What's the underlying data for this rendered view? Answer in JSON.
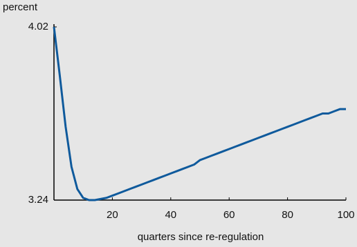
{
  "chart_data": {
    "type": "line",
    "y_label": "percent",
    "x_label": "quarters since re-regulation",
    "x": [
      0,
      2,
      4,
      6,
      8,
      10,
      12,
      14,
      16,
      18,
      20,
      22,
      24,
      26,
      28,
      30,
      32,
      34,
      36,
      38,
      40,
      42,
      44,
      46,
      48,
      50,
      52,
      54,
      56,
      58,
      60,
      62,
      64,
      66,
      68,
      70,
      72,
      74,
      76,
      78,
      80,
      82,
      84,
      86,
      88,
      90,
      92,
      94,
      96,
      98,
      100
    ],
    "series": [
      {
        "color": "#0f5a9c",
        "values": [
          4.02,
          3.8,
          3.57,
          3.39,
          3.29,
          3.25,
          3.24,
          3.24,
          3.245,
          3.25,
          3.26,
          3.27,
          3.28,
          3.29,
          3.3,
          3.31,
          3.32,
          3.33,
          3.34,
          3.35,
          3.36,
          3.37,
          3.38,
          3.39,
          3.4,
          3.42,
          3.43,
          3.44,
          3.45,
          3.46,
          3.47,
          3.48,
          3.49,
          3.5,
          3.51,
          3.52,
          3.53,
          3.54,
          3.55,
          3.56,
          3.57,
          3.58,
          3.59,
          3.6,
          3.61,
          3.62,
          3.63,
          3.63,
          3.64,
          3.65,
          3.65
        ]
      }
    ],
    "xlim": [
      0,
      100
    ],
    "xticks": [
      20,
      40,
      60,
      80,
      100
    ],
    "ylim": [
      3.24,
      4.02
    ],
    "yticks": [
      3.24,
      4.02
    ]
  }
}
